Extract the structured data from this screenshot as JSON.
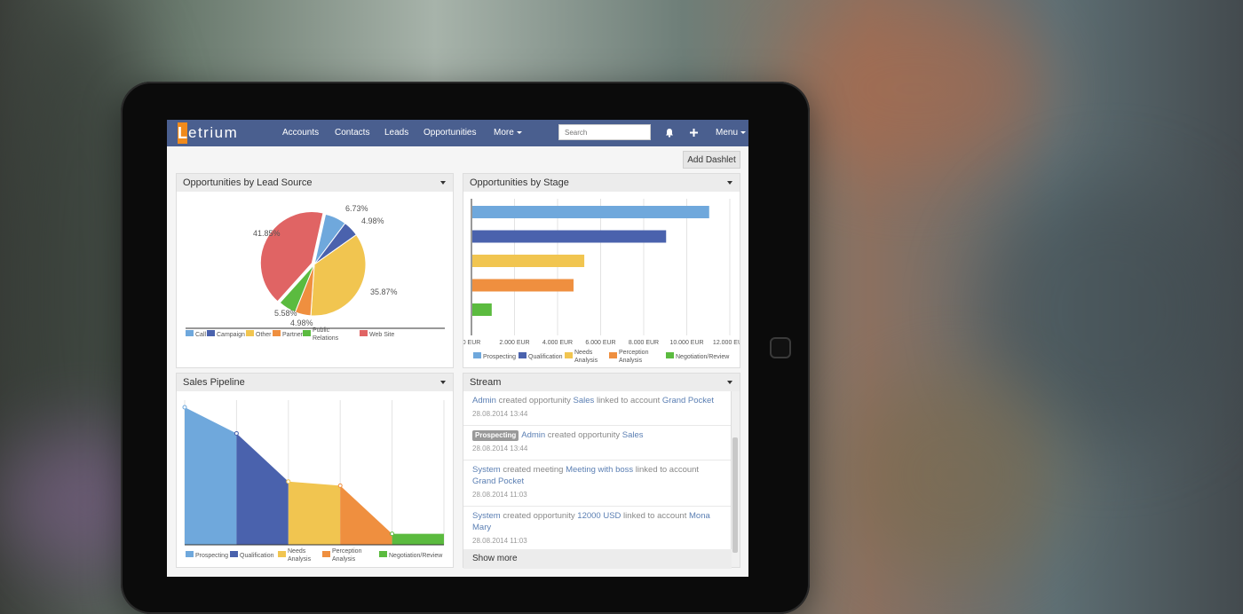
{
  "app": {
    "logo_first": "L",
    "logo_rest": "etrium"
  },
  "nav": {
    "items": [
      "Accounts",
      "Contacts",
      "Leads",
      "Opportunities"
    ],
    "more": "More",
    "menu": "Menu",
    "search_placeholder": "Search"
  },
  "toolbar": {
    "add_dashlet": "Add Dashlet"
  },
  "panels": {
    "lead_source": "Opportunities by Lead Source",
    "by_stage": "Opportunities by Stage",
    "pipeline": "Sales Pipeline",
    "stream": "Stream"
  },
  "colors": {
    "blue": "#6fa8dc",
    "navy": "#4a62ad",
    "yellow": "#f1c550",
    "orange": "#ef8f3f",
    "green": "#5bbb3f",
    "red": "#e06464"
  },
  "chart_data": [
    {
      "type": "pie",
      "title": "Opportunities by Lead Source",
      "labels": [
        "Call",
        "Campaign",
        "Other",
        "Partner",
        "Public Relations",
        "Web Site"
      ],
      "values": [
        6.73,
        4.98,
        35.87,
        4.98,
        5.58,
        41.85
      ],
      "value_labels": [
        "6.73%",
        "4.98%",
        "35.87%",
        "4.98%",
        "5.58%",
        "41.85%"
      ],
      "colors": [
        "#6fa8dc",
        "#4a62ad",
        "#f1c550",
        "#ef8f3f",
        "#5bbb3f",
        "#e06464"
      ],
      "legend": "bottom"
    },
    {
      "type": "bar",
      "orientation": "horizontal",
      "title": "Opportunities by Stage",
      "categories": [
        "Prospecting",
        "Qualification",
        "Needs Analysis",
        "Perception Analysis",
        "Negotiation/Review"
      ],
      "values": [
        11000,
        9000,
        5200,
        4700,
        900
      ],
      "colors": [
        "#6fa8dc",
        "#4a62ad",
        "#f1c550",
        "#ef8f3f",
        "#5bbb3f"
      ],
      "xlim": [
        0,
        12000
      ],
      "x_ticks": [
        "0 EUR",
        "2.000 EUR",
        "4.000 EUR",
        "6.000 EUR",
        "8.000 EUR",
        "10.000 EUR",
        "12.000 EUR"
      ],
      "grid": true,
      "legend": "bottom"
    },
    {
      "type": "area",
      "title": "Sales Pipeline",
      "categories": [
        "Prospecting",
        "Qualification",
        "Needs Analysis",
        "Perception Analysis",
        "Negotiation/Review"
      ],
      "values": [
        100,
        81,
        46,
        43,
        8
      ],
      "colors": [
        "#6fa8dc",
        "#4a62ad",
        "#f1c550",
        "#ef8f3f",
        "#5bbb3f"
      ],
      "ylim": [
        0,
        100
      ],
      "legend": "bottom"
    }
  ],
  "stream": {
    "items": [
      {
        "parts": [
          [
            "lnk",
            "Admin"
          ],
          [
            "txt",
            " created opportunity "
          ],
          [
            "lnk",
            "Sales"
          ],
          [
            "txt",
            " linked to account "
          ],
          [
            "lnk",
            "Grand Pocket"
          ]
        ],
        "time": "28.08.2014 13:44"
      },
      {
        "badge": "Prospecting",
        "parts": [
          [
            "lnk",
            "Admin"
          ],
          [
            "txt",
            " created opportunity "
          ],
          [
            "lnk",
            "Sales"
          ]
        ],
        "time": "28.08.2014 13:44"
      },
      {
        "parts": [
          [
            "lnk",
            "System"
          ],
          [
            "txt",
            " created meeting "
          ],
          [
            "lnk",
            "Meeting with boss"
          ],
          [
            "txt",
            " linked to account "
          ],
          [
            "lnk",
            "Grand Pocket"
          ]
        ],
        "time": "28.08.2014 11:03"
      },
      {
        "parts": [
          [
            "lnk",
            "System"
          ],
          [
            "txt",
            " created opportunity "
          ],
          [
            "lnk",
            "12000 USD"
          ],
          [
            "txt",
            " linked to account "
          ],
          [
            "lnk",
            "Mona Mary"
          ]
        ],
        "time": "28.08.2014 11:03"
      }
    ],
    "show_more": "Show more"
  }
}
